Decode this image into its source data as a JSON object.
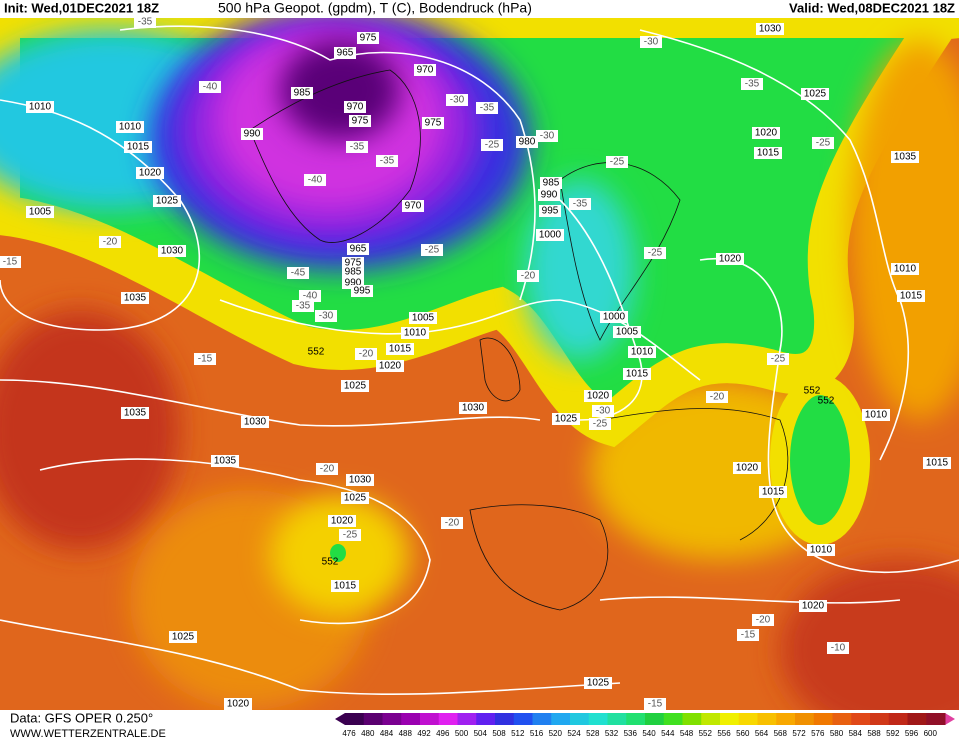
{
  "header": {
    "init": "Init: Wed,01DEC2021 18Z",
    "title": "500 hPa Geopot. (gpdm), T (C), Bodendruck (hPa)",
    "valid": "Valid: Wed,08DEC2021 18Z"
  },
  "footer": {
    "data": "Data: GFS OPER 0.250°",
    "url": "WWW.WETTERZENTRALE.DE"
  },
  "scale": {
    "labels": [
      "476",
      "480",
      "484",
      "488",
      "492",
      "496",
      "500",
      "504",
      "508",
      "512",
      "516",
      "520",
      "524",
      "528",
      "532",
      "536",
      "540",
      "544",
      "548",
      "552",
      "556",
      "560",
      "564",
      "568",
      "572",
      "576",
      "580",
      "584",
      "588",
      "592",
      "596",
      "600"
    ]
  },
  "isobar_labels": [
    "1010",
    "1010",
    "1015",
    "1020",
    "1025",
    "1005",
    "1030",
    "1035",
    "985",
    "990",
    "965",
    "975",
    "970",
    "970",
    "975",
    "975",
    "980",
    "985",
    "990",
    "995",
    "1000",
    "970",
    "965",
    "975",
    "985",
    "990",
    "995",
    "1005",
    "1010",
    "1015",
    "1020",
    "1025",
    "1030",
    "1030",
    "1035",
    "1035",
    "1030",
    "1025",
    "1020",
    "1015",
    "1025",
    "1020",
    "1000",
    "1005",
    "1010",
    "1015",
    "1020",
    "1025",
    "1020",
    "1020",
    "1015",
    "1025",
    "1030",
    "1035",
    "1010",
    "1015",
    "1010",
    "1015",
    "1020",
    "1015",
    "1010",
    "1020",
    "1025"
  ],
  "temperature_labels": [
    "-35",
    "-40",
    "-35",
    "-35",
    "-40",
    "-45",
    "-40",
    "-35",
    "-30",
    "-25",
    "-30",
    "-35",
    "-30",
    "-25",
    "-35",
    "-25",
    "-30",
    "-35",
    "-25",
    "-25",
    "-20",
    "-20",
    "-15",
    "-15",
    "-20",
    "-25",
    "-20",
    "-30",
    "-25",
    "-20",
    "-25",
    "-20",
    "-20",
    "-15",
    "-10",
    "-15"
  ],
  "geopotential_labels": [
    "552",
    "552",
    "552",
    "552"
  ]
}
